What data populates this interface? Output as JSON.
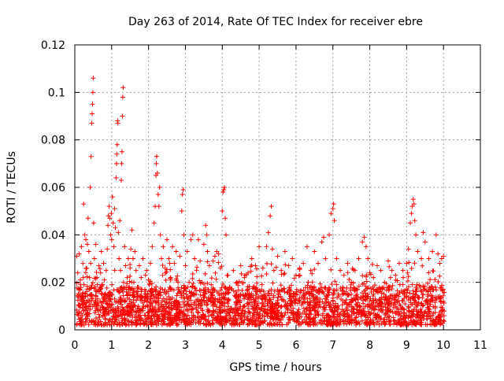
{
  "chart_data": {
    "type": "scatter",
    "title": "Day 263 of 2014, Rate Of TEC Index for receiver ebre",
    "xlabel": "GPS time / hours",
    "ylabel": "ROTI / TECUs",
    "xlim": [
      0,
      11
    ],
    "ylim": [
      0,
      0.12
    ],
    "x_ticks": [
      0,
      1,
      2,
      3,
      4,
      5,
      6,
      7,
      8,
      9,
      10,
      11
    ],
    "x_tick_labels": [
      "0",
      "1",
      "2",
      "3",
      "4",
      "5",
      "6",
      "7",
      "8",
      "9",
      "10",
      "11"
    ],
    "y_ticks": [
      0,
      0.02,
      0.04,
      0.06,
      0.08,
      0.1,
      0.12
    ],
    "y_tick_labels": [
      "0",
      "0.02",
      "0.04",
      "0.06",
      "0.08",
      "0.1",
      "0.12"
    ],
    "grid": true,
    "marker": "+",
    "color": "#ff0000",
    "series": [
      {
        "name": "ROTI",
        "points": [
          [
            0.05,
            0.031
          ],
          [
            0.08,
            0.024
          ],
          [
            0.1,
            0.015
          ],
          [
            0.12,
            0.032
          ],
          [
            0.15,
            0.021
          ],
          [
            0.18,
            0.035
          ],
          [
            0.2,
            0.013
          ],
          [
            0.22,
            0.028
          ],
          [
            0.24,
            0.053
          ],
          [
            0.25,
            0.019
          ],
          [
            0.27,
            0.04
          ],
          [
            0.28,
            0.011
          ],
          [
            0.3,
            0.038
          ],
          [
            0.32,
            0.026
          ],
          [
            0.34,
            0.036
          ],
          [
            0.36,
            0.047
          ],
          [
            0.38,
            0.033
          ],
          [
            0.4,
            0.022
          ],
          [
            0.42,
            0.06
          ],
          [
            0.43,
            0.028
          ],
          [
            0.44,
            0.073
          ],
          [
            0.46,
            0.087
          ],
          [
            0.47,
            0.091
          ],
          [
            0.48,
            0.095
          ],
          [
            0.49,
            0.1
          ],
          [
            0.5,
            0.106
          ],
          [
            0.51,
            0.045
          ],
          [
            0.53,
            0.03
          ],
          [
            0.55,
            0.018
          ],
          [
            0.57,
            0.036
          ],
          [
            0.6,
            0.022
          ],
          [
            0.62,
            0.013
          ],
          [
            0.65,
            0.027
          ],
          [
            0.68,
            0.017
          ],
          [
            0.7,
            0.024
          ],
          [
            0.72,
            0.033
          ],
          [
            0.75,
            0.019
          ],
          [
            0.78,
            0.028
          ],
          [
            0.8,
            0.021
          ],
          [
            0.82,
            0.015
          ],
          [
            0.85,
            0.025
          ],
          [
            0.88,
            0.034
          ],
          [
            0.9,
            0.044
          ],
          [
            0.91,
            0.048
          ],
          [
            0.93,
            0.052
          ],
          [
            0.95,
            0.047
          ],
          [
            0.97,
            0.04
          ],
          [
            0.99,
            0.049
          ],
          [
            1.0,
            0.038
          ],
          [
            1.02,
            0.056
          ],
          [
            1.04,
            0.045
          ],
          [
            1.06,
            0.035
          ],
          [
            1.08,
            0.051
          ],
          [
            1.1,
            0.043
          ],
          [
            1.12,
            0.064
          ],
          [
            1.13,
            0.07
          ],
          [
            1.14,
            0.074
          ],
          [
            1.15,
            0.078
          ],
          [
            1.16,
            0.088
          ],
          [
            1.17,
            0.087
          ],
          [
            1.18,
            0.041
          ],
          [
            1.2,
            0.03
          ],
          [
            1.22,
            0.046
          ],
          [
            1.24,
            0.025
          ],
          [
            1.26,
            0.063
          ],
          [
            1.27,
            0.07
          ],
          [
            1.28,
            0.075
          ],
          [
            1.29,
            0.09
          ],
          [
            1.3,
            0.098
          ],
          [
            1.31,
            0.102
          ],
          [
            1.32,
            0.02
          ],
          [
            1.35,
            0.035
          ],
          [
            1.38,
            0.027
          ],
          [
            1.4,
            0.016
          ],
          [
            1.42,
            0.022
          ],
          [
            1.45,
            0.03
          ],
          [
            1.48,
            0.018
          ],
          [
            1.5,
            0.026
          ],
          [
            1.52,
            0.034
          ],
          [
            1.55,
            0.042
          ],
          [
            1.58,
            0.03
          ],
          [
            1.6,
            0.02
          ],
          [
            1.63,
            0.033
          ],
          [
            1.66,
            0.025
          ],
          [
            1.7,
            0.018
          ],
          [
            1.75,
            0.027
          ],
          [
            1.8,
            0.022
          ],
          [
            1.85,
            0.03
          ],
          [
            1.9,
            0.017
          ],
          [
            1.95,
            0.025
          ],
          [
            2.0,
            0.021
          ],
          [
            2.05,
            0.028
          ],
          [
            2.1,
            0.035
          ],
          [
            2.15,
            0.045
          ],
          [
            2.18,
            0.052
          ],
          [
            2.2,
            0.065
          ],
          [
            2.21,
            0.07
          ],
          [
            2.22,
            0.073
          ],
          [
            2.24,
            0.066
          ],
          [
            2.26,
            0.057
          ],
          [
            2.28,
            0.052
          ],
          [
            2.3,
            0.06
          ],
          [
            2.32,
            0.04
          ],
          [
            2.35,
            0.03
          ],
          [
            2.38,
            0.023
          ],
          [
            2.4,
            0.035
          ],
          [
            2.45,
            0.026
          ],
          [
            2.5,
            0.038
          ],
          [
            2.55,
            0.03
          ],
          [
            2.6,
            0.022
          ],
          [
            2.65,
            0.035
          ],
          [
            2.7,
            0.028
          ],
          [
            2.75,
            0.033
          ],
          [
            2.8,
            0.02
          ],
          [
            2.85,
            0.031
          ],
          [
            2.9,
            0.05
          ],
          [
            2.92,
            0.057
          ],
          [
            2.94,
            0.059
          ],
          [
            2.96,
            0.04
          ],
          [
            3.0,
            0.027
          ],
          [
            3.05,
            0.033
          ],
          [
            3.1,
            0.02
          ],
          [
            3.15,
            0.038
          ],
          [
            3.2,
            0.04
          ],
          [
            3.25,
            0.03
          ],
          [
            3.3,
            0.025
          ],
          [
            3.35,
            0.038
          ],
          [
            3.4,
            0.029
          ],
          [
            3.45,
            0.02
          ],
          [
            3.5,
            0.036
          ],
          [
            3.55,
            0.044
          ],
          [
            3.58,
            0.04
          ],
          [
            3.6,
            0.033
          ],
          [
            3.65,
            0.027
          ],
          [
            3.7,
            0.019
          ],
          [
            3.75,
            0.029
          ],
          [
            3.8,
            0.031
          ],
          [
            3.85,
            0.033
          ],
          [
            3.9,
            0.032
          ],
          [
            3.95,
            0.026
          ],
          [
            4.0,
            0.05
          ],
          [
            4.02,
            0.058
          ],
          [
            4.04,
            0.059
          ],
          [
            4.06,
            0.06
          ],
          [
            4.08,
            0.047
          ],
          [
            4.1,
            0.04
          ],
          [
            4.15,
            0.023
          ],
          [
            4.2,
            0.018
          ],
          [
            4.3,
            0.025
          ],
          [
            4.4,
            0.02
          ],
          [
            4.5,
            0.027
          ],
          [
            4.6,
            0.022
          ],
          [
            4.7,
            0.024
          ],
          [
            4.8,
            0.03
          ],
          [
            4.9,
            0.027
          ],
          [
            5.0,
            0.035
          ],
          [
            5.1,
            0.026
          ],
          [
            5.2,
            0.035
          ],
          [
            5.25,
            0.041
          ],
          [
            5.3,
            0.048
          ],
          [
            5.33,
            0.052
          ],
          [
            5.36,
            0.034
          ],
          [
            5.4,
            0.025
          ],
          [
            5.5,
            0.031
          ],
          [
            5.6,
            0.025
          ],
          [
            5.7,
            0.033
          ],
          [
            5.8,
            0.027
          ],
          [
            5.9,
            0.03
          ],
          [
            6.0,
            0.023
          ],
          [
            6.1,
            0.026
          ],
          [
            6.2,
            0.028
          ],
          [
            6.3,
            0.035
          ],
          [
            6.4,
            0.025
          ],
          [
            6.5,
            0.033
          ],
          [
            6.6,
            0.028
          ],
          [
            6.7,
            0.037
          ],
          [
            6.75,
            0.039
          ],
          [
            6.8,
            0.03
          ],
          [
            6.9,
            0.04
          ],
          [
            6.95,
            0.049
          ],
          [
            7.0,
            0.051
          ],
          [
            7.02,
            0.053
          ],
          [
            7.04,
            0.046
          ],
          [
            7.1,
            0.03
          ],
          [
            7.2,
            0.025
          ],
          [
            7.3,
            0.023
          ],
          [
            7.4,
            0.028
          ],
          [
            7.5,
            0.02
          ],
          [
            7.6,
            0.025
          ],
          [
            7.7,
            0.03
          ],
          [
            7.8,
            0.037
          ],
          [
            7.85,
            0.039
          ],
          [
            7.9,
            0.035
          ],
          [
            7.95,
            0.03
          ],
          [
            8.0,
            0.024
          ],
          [
            8.1,
            0.022
          ],
          [
            8.2,
            0.027
          ],
          [
            8.3,
            0.025
          ],
          [
            8.4,
            0.02
          ],
          [
            8.5,
            0.029
          ],
          [
            8.6,
            0.025
          ],
          [
            8.7,
            0.023
          ],
          [
            8.8,
            0.028
          ],
          [
            8.9,
            0.025
          ],
          [
            9.0,
            0.028
          ],
          [
            9.05,
            0.034
          ],
          [
            9.1,
            0.045
          ],
          [
            9.13,
            0.049
          ],
          [
            9.15,
            0.052
          ],
          [
            9.18,
            0.055
          ],
          [
            9.2,
            0.053
          ],
          [
            9.22,
            0.046
          ],
          [
            9.25,
            0.04
          ],
          [
            9.3,
            0.033
          ],
          [
            9.4,
            0.03
          ],
          [
            9.45,
            0.041
          ],
          [
            9.5,
            0.037
          ],
          [
            9.6,
            0.03
          ],
          [
            9.7,
            0.033
          ],
          [
            9.8,
            0.04
          ],
          [
            9.85,
            0.032
          ],
          [
            9.9,
            0.028
          ],
          [
            9.95,
            0.03
          ],
          [
            10.0,
            0.031
          ]
        ]
      }
    ],
    "background_band": {
      "x_range": [
        0.05,
        10.02
      ],
      "y_range": [
        0.002,
        0.018
      ],
      "density": "dense"
    }
  }
}
